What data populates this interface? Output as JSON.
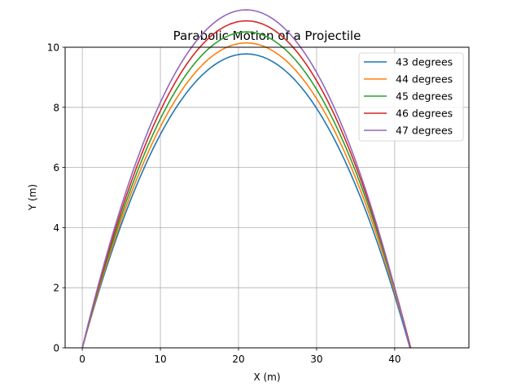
{
  "chart_data": {
    "type": "line",
    "title": "Parabolic Motion of a Projectile",
    "xlabel": "X (m)",
    "ylabel": "Y (m)",
    "xlim": [
      -2.2,
      49.5
    ],
    "ylim": [
      0,
      10
    ],
    "xticks": [
      0,
      10,
      20,
      30,
      40
    ],
    "yticks": [
      0,
      2,
      4,
      6,
      8,
      10
    ],
    "grid": true,
    "legend_position": "top-right",
    "gravity": 9.8,
    "launch_speed": 20.3,
    "series": [
      {
        "name": "43 degrees",
        "angle_deg": 43,
        "color": "#1f77b4"
      },
      {
        "name": "44 degrees",
        "angle_deg": 44,
        "color": "#ff7f0e"
      },
      {
        "name": "45 degrees",
        "angle_deg": 45,
        "color": "#2ca02c"
      },
      {
        "name": "46 degrees",
        "angle_deg": 46,
        "color": "#d62728"
      },
      {
        "name": "47 degrees",
        "angle_deg": 47,
        "color": "#9467bd"
      }
    ]
  }
}
